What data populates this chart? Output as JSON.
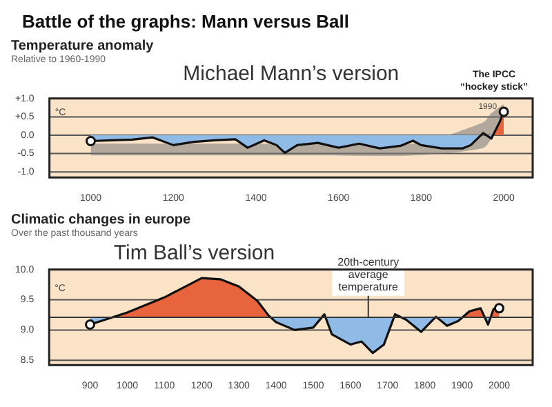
{
  "chart_data": [
    {
      "type": "line",
      "title": "Temperature anomaly",
      "subtitle": "Relative to 1960-1990",
      "ylabel": "°C",
      "annotations": [
        "Battle of the graphs: Mann versus Ball",
        "Michael Mann’s version",
        "The IPCC “hockey stick”",
        {
          "text": "1990",
          "x": 1990,
          "y": 0.36
        }
      ],
      "series": [
        {
          "color": "#111111",
          "x": [
            1000,
            1050,
            1100,
            1150,
            1200,
            1250,
            1300,
            1350,
            1380,
            1420,
            1450,
            1470,
            1500,
            1550,
            1600,
            1650,
            1700,
            1750,
            1780,
            1800,
            1850,
            1900,
            1920,
            1950,
            1970,
            1990,
            2000
          ],
          "values": [
            -0.16,
            -0.14,
            -0.12,
            -0.06,
            -0.27,
            -0.18,
            -0.14,
            -0.11,
            -0.34,
            -0.14,
            -0.27,
            -0.48,
            -0.27,
            -0.21,
            -0.34,
            -0.23,
            -0.36,
            -0.29,
            -0.15,
            -0.27,
            -0.36,
            -0.36,
            -0.27,
            0.06,
            -0.09,
            0.36,
            0.64
          ],
          "lower": [
            -0.55,
            -0.55,
            -0.55,
            -0.55,
            null,
            -0.55,
            -0.55,
            -0.55,
            null,
            -0.55,
            null,
            null,
            null,
            -0.55,
            null,
            null,
            null,
            null,
            -0.55,
            null,
            null,
            null,
            null,
            -0.35,
            -0.1,
            null,
            0.25
          ],
          "upper": [
            -0.23,
            -0.23,
            -0.23,
            -0.23,
            null,
            -0.23,
            -0.23,
            -0.23,
            null,
            -0.23,
            null,
            null,
            null,
            -0.23,
            null,
            null,
            null,
            null,
            -0.23,
            null,
            null,
            null,
            null,
            0.35,
            0.6,
            null,
            0.85
          ]
        }
      ],
      "xlim": [
        900,
        2070
      ],
      "xticks": [
        1000,
        1200,
        1400,
        1600,
        1800,
        2000
      ],
      "ylim": [
        -1.15,
        1.0
      ],
      "yticks": [
        {
          "value": 1.0,
          "label": "+1.0"
        },
        {
          "value": 0.5,
          "label": "+0.5"
        },
        {
          "value": 0,
          "label": "0.0"
        },
        -0.5,
        {
          "value": -1.0,
          "label": "-1.0"
        }
      ],
      "grid": "y"
    },
    {
      "type": "line",
      "title": "Climatic changes in europe",
      "subtitle": "Over the past thousand years",
      "ylabel": "°C",
      "annotations": [
        "Tim Ball’s version"
      ],
      "series": [
        {
          "color": "#111111",
          "x": [
            900,
            1000,
            1100,
            1150,
            1200,
            1250,
            1300,
            1350,
            1380,
            1400,
            1450,
            1500,
            1530,
            1550,
            1600,
            1630,
            1660,
            1690,
            1720,
            1750,
            1790,
            1830,
            1860,
            1890,
            1920,
            1950,
            1970,
            1985,
            2000
          ],
          "values": [
            9.09,
            9.29,
            9.54,
            9.7,
            9.86,
            9.84,
            9.72,
            9.48,
            9.24,
            9.13,
            9.0,
            9.04,
            9.26,
            8.93,
            8.76,
            8.81,
            8.62,
            8.76,
            9.26,
            9.17,
            8.97,
            9.22,
            9.07,
            9.15,
            9.31,
            9.36,
            9.09,
            9.35,
            9.36
          ]
        }
      ],
      "ref_lines": [
        {
          "axis": "y",
          "value": 9.21,
          "label": "20th-century average temperature",
          "color": "#333333"
        }
      ],
      "xlim": [
        790,
        2090
      ],
      "xticks": [
        900,
        1000,
        1100,
        1200,
        1300,
        1400,
        1500,
        1600,
        1700,
        1800,
        1900,
        2000
      ],
      "ylim": [
        8.42,
        10.0
      ],
      "yticks": [
        {
          "value": 10,
          "label": "10.0"
        },
        9.5,
        {
          "value": 9,
          "label": "9.0"
        },
        8.5
      ],
      "grid": "y"
    }
  ]
}
